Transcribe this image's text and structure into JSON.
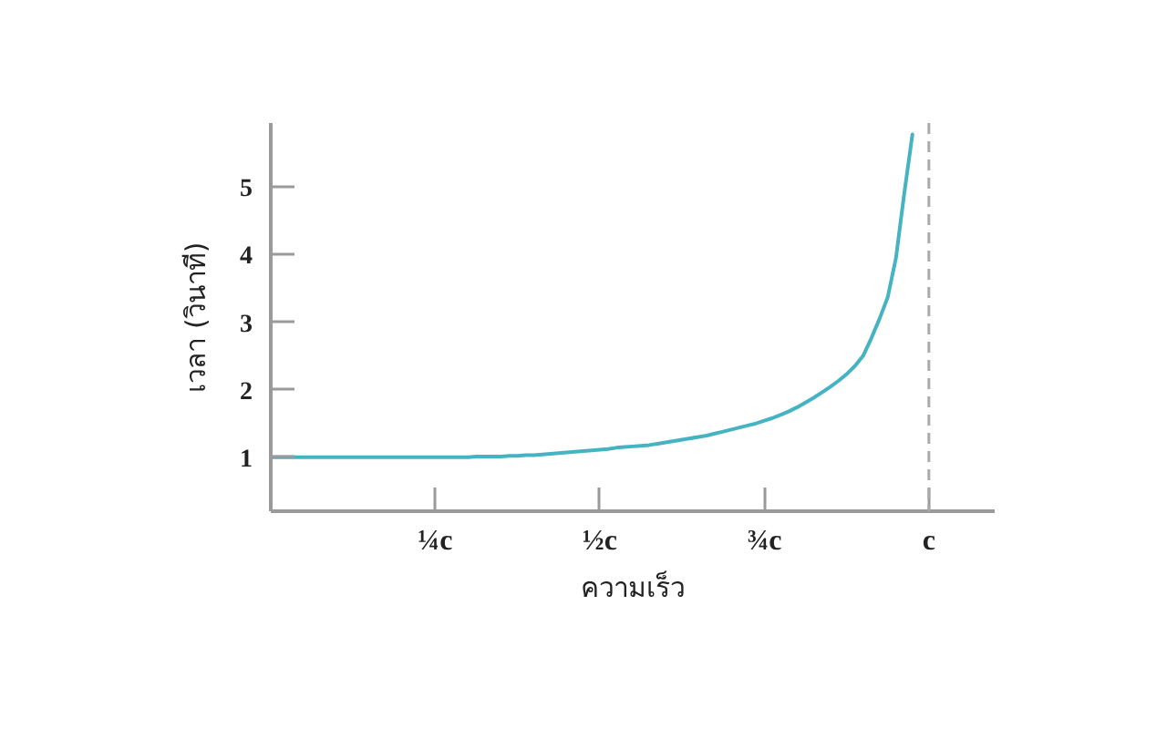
{
  "chart_data": {
    "type": "line",
    "xlabel": "ความเร็ว",
    "ylabel": "เวลา (วินาที)",
    "categories": [
      null,
      null,
      null,
      null,
      null,
      null,
      null,
      null,
      null,
      null,
      null,
      null,
      null,
      null,
      null,
      null,
      null,
      null,
      null,
      null,
      "¼c",
      null,
      null,
      null,
      null,
      null,
      null,
      null,
      null,
      null,
      null,
      null,
      null,
      null,
      null,
      null,
      null,
      null,
      null,
      null,
      "½c",
      null,
      null,
      null,
      null,
      null,
      null,
      null,
      null,
      null,
      null,
      null,
      null,
      null,
      null,
      null,
      null,
      null,
      null,
      null,
      "¾c",
      null,
      null,
      null,
      null,
      null,
      null,
      null,
      null,
      null,
      null,
      null,
      null,
      null,
      null,
      null,
      null,
      null,
      null,
      null,
      "c",
      null,
      null,
      null,
      null,
      null,
      null,
      null,
      null
    ],
    "series": [
      {
        "color": "#45b3c2",
        "values": [
          1.0,
          1.0,
          1.0,
          1.0,
          1.0,
          1.0,
          1.0,
          1.0,
          1.0,
          1.0,
          1.0,
          1.0,
          1.0,
          1.0,
          1.0,
          1.0,
          1.0,
          1.0,
          1.0,
          1.0,
          1.0,
          1.0,
          1.0,
          1.0,
          1.0,
          1.01,
          1.01,
          1.01,
          1.01,
          1.02,
          1.02,
          1.03,
          1.03,
          1.04,
          1.05,
          1.06,
          1.07,
          1.08,
          1.09,
          1.1,
          1.11,
          1.12,
          1.14,
          1.15,
          1.16,
          1.17,
          1.18,
          1.2,
          1.22,
          1.24,
          1.26,
          1.28,
          1.3,
          1.32,
          1.35,
          1.38,
          1.41,
          1.44,
          1.47,
          1.5,
          1.54,
          1.58,
          1.63,
          1.68,
          1.74,
          1.81,
          1.88,
          1.96,
          2.04,
          2.13,
          2.23,
          2.35,
          2.5,
          2.76,
          3.05,
          3.37,
          3.95,
          4.9,
          5.78,
          null,
          null,
          null,
          null,
          null,
          null,
          null,
          null,
          null,
          null
        ]
      }
    ],
    "ylim": [
      0.2,
      5.95
    ],
    "yticks": [
      1,
      2,
      3,
      4,
      5
    ],
    "ref_lines": [
      {
        "axis": "x",
        "value": "c",
        "color": "#aaaaaa",
        "line_style": "dashed"
      }
    ],
    "grid": false,
    "marker": "none",
    "line_style": "solid"
  }
}
